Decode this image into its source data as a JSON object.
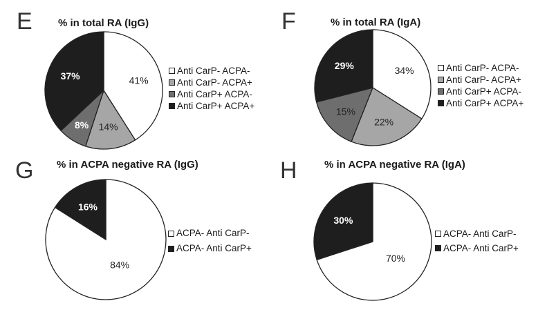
{
  "chart_data": [
    {
      "type": "pie",
      "panel_letter": "E",
      "title": "% in total RA (IgG)",
      "slices": [
        {
          "label": "Anti CarP- ACPA-",
          "value": 41,
          "text": "41%",
          "color": "#ffffff",
          "text_color": "#222222"
        },
        {
          "label": "Anti CarP- ACPA+",
          "value": 14,
          "text": "14%",
          "color": "#a6a6a6",
          "text_color": "#222222"
        },
        {
          "label": "Anti CarP+ ACPA-",
          "value": 8,
          "text": "8%",
          "color": "#6e6e6e",
          "text_color": "#ffffff"
        },
        {
          "label": "Anti CarP+ ACPA+",
          "value": 37,
          "text": "37%",
          "color": "#1e1e1e",
          "text_color": "#ffffff"
        }
      ],
      "legend": [
        "Anti CarP- ACPA-",
        "Anti CarP- ACPA+",
        "Anti CarP+ ACPA-",
        "Anti CarP+ ACPA+"
      ],
      "legend_placement": "right"
    },
    {
      "type": "pie",
      "panel_letter": "F",
      "title": "% in total RA (IgA)",
      "slices": [
        {
          "label": "Anti CarP- ACPA-",
          "value": 34,
          "text": "34%",
          "color": "#ffffff",
          "text_color": "#222222"
        },
        {
          "label": "Anti CarP- ACPA+",
          "value": 22,
          "text": "22%",
          "color": "#a6a6a6",
          "text_color": "#222222"
        },
        {
          "label": "Anti CarP+ ACPA-",
          "value": 15,
          "text": "15%",
          "color": "#6e6e6e",
          "text_color": "#222222"
        },
        {
          "label": "Anti CarP+ ACPA+",
          "value": 29,
          "text": "29%",
          "color": "#1e1e1e",
          "text_color": "#ffffff"
        }
      ],
      "legend": [
        "Anti CarP- ACPA-",
        "Anti CarP- ACPA+",
        "Anti CarP+ ACPA-",
        "Anti CarP+ ACPA+"
      ],
      "legend_placement": "right"
    },
    {
      "type": "pie",
      "panel_letter": "G",
      "title": "% in ACPA negative RA (IgG)",
      "slices": [
        {
          "label": "ACPA- Anti CarP-",
          "value": 84,
          "text": "84%",
          "color": "#ffffff",
          "text_color": "#222222"
        },
        {
          "label": "ACPA- Anti CarP+",
          "value": 16,
          "text": "16%",
          "color": "#1e1e1e",
          "text_color": "#ffffff"
        }
      ],
      "legend": [
        "ACPA- Anti CarP-",
        "ACPA- Anti CarP+"
      ],
      "legend_placement": "right"
    },
    {
      "type": "pie",
      "panel_letter": "H",
      "title": "% in ACPA negative RA (IgA)",
      "slices": [
        {
          "label": "ACPA- Anti CarP-",
          "value": 70,
          "text": "70%",
          "color": "#ffffff",
          "text_color": "#222222"
        },
        {
          "label": "ACPA- Anti CarP+",
          "value": 30,
          "text": "30%",
          "color": "#1e1e1e",
          "text_color": "#ffffff"
        }
      ],
      "legend": [
        "ACPA- Anti CarP-",
        "ACPA- Anti CarP+"
      ],
      "legend_placement": "right"
    }
  ]
}
